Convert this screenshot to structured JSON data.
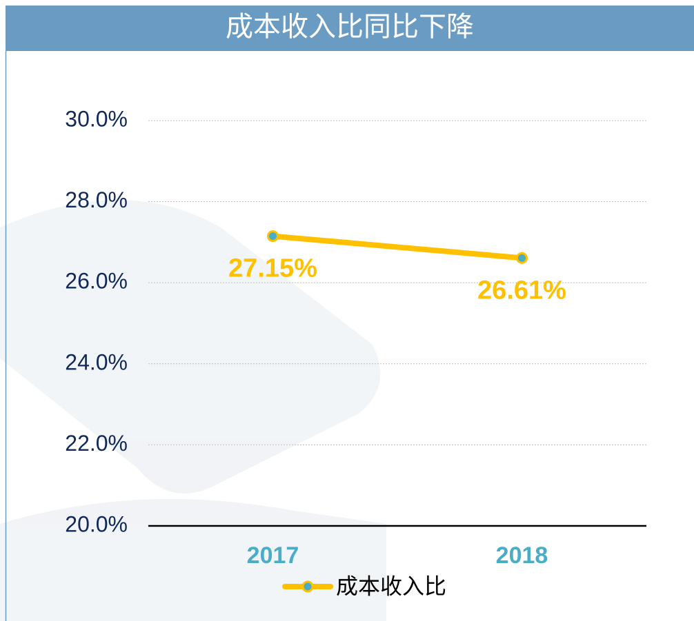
{
  "chart_data": {
    "type": "line",
    "title": "成本收入比同比下降",
    "categories": [
      "2017",
      "2018"
    ],
    "series": [
      {
        "name": "成本收入比",
        "color": "#FFC000",
        "marker_color": "#4BACC6",
        "values": [
          27.15,
          26.61
        ],
        "value_labels": [
          "27.15%",
          "26.61%"
        ]
      }
    ],
    "ylim": [
      20,
      30
    ],
    "yticks": [
      {
        "value": 20,
        "label": "20.0%"
      },
      {
        "value": 22,
        "label": "22.0%"
      },
      {
        "value": 24,
        "label": "24.0%"
      },
      {
        "value": 26,
        "label": "26.0%"
      },
      {
        "value": 28,
        "label": "28.0%"
      },
      {
        "value": 30,
        "label": "30.0%"
      }
    ],
    "grid": true,
    "legend": "bottom"
  }
}
